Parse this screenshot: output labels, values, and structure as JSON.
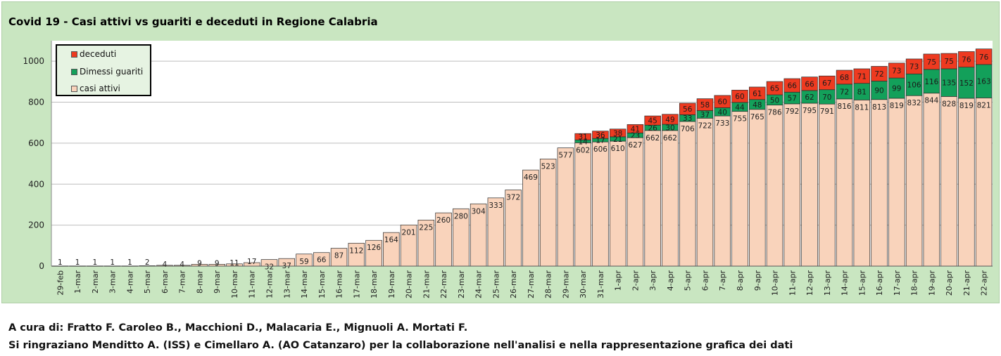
{
  "title": "Covid 19 - Casi attivi vs guariti e deceduti in Regione Calabria",
  "footer": {
    "line1": "A cura di: Fratto F. Caroleo B., Macchioni D., Malacaria E., Mignuoli A. Mortati F.",
    "line2": "Si ringraziano Menditto A. (ISS) e Cimellaro A. (AO Catanzaro) per la collaborazione nell'analisi e nella rappresentazione grafica dei dati"
  },
  "colors": {
    "panel": "#c9e6c1",
    "plot_bg": "#ffffff",
    "attivi": "#f9d3bb",
    "guariti": "#13a05a",
    "deceduti": "#ee3a20"
  },
  "chart_data": {
    "type": "bar",
    "stacked": true,
    "title": "Covid 19 - Casi attivi vs guariti e deceduti in Regione Calabria",
    "ylim": [
      0,
      1100
    ],
    "yticks": [
      0,
      200,
      400,
      600,
      800,
      1000
    ],
    "grid": true,
    "legend_position": "top-left",
    "categories": [
      "29-feb",
      "1-mar",
      "2-mar",
      "3-mar",
      "4-mar",
      "5-mar",
      "6-mar",
      "7-mar",
      "8-mar",
      "9-mar",
      "10-mar",
      "11-mar",
      "12-mar",
      "13-mar",
      "14-mar",
      "15-mar",
      "16-mar",
      "17-mar",
      "18-mar",
      "19-mar",
      "20-mar",
      "21-mar",
      "22-mar",
      "23-mar",
      "24-mar",
      "25-mar",
      "26-mar",
      "27-mar",
      "28-mar",
      "29-mar",
      "30-mar",
      "31-mar",
      "1-apr",
      "2-apr",
      "3-apr",
      "4-apr",
      "5-apr",
      "6-apr",
      "7-apr",
      "8-apr",
      "9-apr",
      "10-apr",
      "11-apr",
      "12-apr",
      "13-apr",
      "14-apr",
      "15-apr",
      "16-apr",
      "17-apr",
      "18-apr",
      "19-apr",
      "20-apr",
      "21-apr",
      "22-apr"
    ],
    "series": [
      {
        "name": "casi attivi",
        "color": "#f9d3bb",
        "values": [
          1,
          1,
          1,
          1,
          1,
          2,
          4,
          4,
          9,
          9,
          11,
          17,
          32,
          37,
          59,
          66,
          87,
          112,
          126,
          164,
          201,
          225,
          260,
          280,
          304,
          333,
          372,
          469,
          523,
          577,
          602,
          606,
          610,
          627,
          662,
          662,
          706,
          722,
          733,
          755,
          765,
          786,
          792,
          795,
          791,
          816,
          811,
          813,
          819,
          832,
          844,
          828,
          819,
          821
        ]
      },
      {
        "name": "Dimessi guariti",
        "color": "#13a05a",
        "values": [
          0,
          0,
          0,
          0,
          0,
          0,
          0,
          0,
          0,
          0,
          0,
          0,
          0,
          0,
          0,
          0,
          0,
          0,
          0,
          0,
          0,
          0,
          0,
          0,
          0,
          0,
          0,
          0,
          0,
          0,
          14,
          17,
          21,
          23,
          26,
          30,
          33,
          37,
          40,
          44,
          48,
          50,
          57,
          62,
          70,
          72,
          81,
          90,
          99,
          106,
          116,
          135,
          152,
          163
        ],
        "labels": [
          "",
          "",
          "",
          "",
          "",
          "",
          "",
          "",
          "",
          "",
          "",
          "",
          "",
          "",
          "",
          "",
          "",
          "",
          "",
          "",
          "",
          "",
          "",
          "",
          "",
          "",
          "",
          "",
          "",
          "",
          "14",
          "17",
          "21",
          "23",
          "26",
          "30",
          "33",
          "37",
          "40",
          "44",
          "48",
          "50",
          "57",
          "62",
          "70",
          "72",
          "81",
          "90",
          "99",
          "106",
          "116",
          "135",
          "152",
          "163"
        ]
      },
      {
        "name": "deceduti",
        "color": "#ee3a20",
        "values": [
          0,
          0,
          0,
          0,
          0,
          0,
          0,
          0,
          0,
          0,
          0,
          0,
          0,
          0,
          0,
          0,
          0,
          0,
          0,
          0,
          0,
          0,
          0,
          0,
          0,
          0,
          0,
          0,
          0,
          0,
          31,
          36,
          38,
          41,
          45,
          49,
          56,
          58,
          60,
          60,
          61,
          65,
          66,
          66,
          67,
          68,
          71,
          72,
          73,
          73,
          75,
          75,
          76,
          76
        ],
        "labels": [
          "",
          "",
          "",
          "",
          "",
          "",
          "",
          "",
          "",
          "",
          "",
          "",
          "",
          "",
          "",
          "",
          "",
          "",
          "",
          "",
          "",
          "",
          "",
          "",
          "",
          "",
          "",
          "",
          "",
          "",
          "31",
          "36",
          "38",
          "41",
          "45",
          "49",
          "56",
          "58",
          "60",
          "60",
          "61",
          "65",
          "66",
          "66",
          "67",
          "68",
          "71",
          "72",
          "73",
          "73",
          "75",
          "75",
          "76",
          "76"
        ]
      }
    ],
    "legend": [
      "deceduti",
      "Dimessi guariti",
      "casi attivi"
    ]
  }
}
